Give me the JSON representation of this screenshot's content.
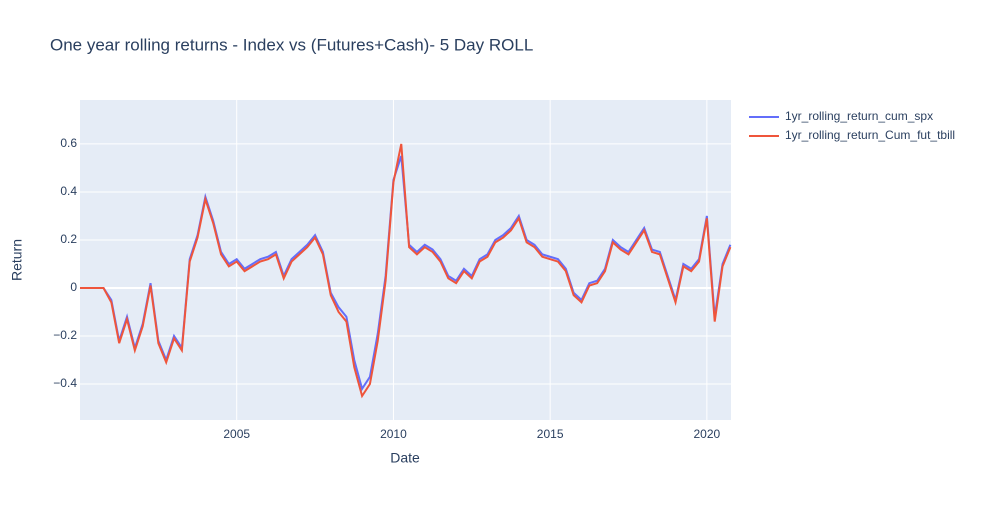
{
  "chart_data": {
    "type": "line",
    "title": "One year rolling returns - Index vs (Futures+Cash)- 5 Day ROLL",
    "x_label": "Date",
    "y_label": "Return",
    "x": [
      2000.0,
      2000.25,
      2000.5,
      2000.75,
      2001.0,
      2001.25,
      2001.5,
      2001.75,
      2002.0,
      2002.25,
      2002.5,
      2002.75,
      2003.0,
      2003.25,
      2003.5,
      2003.75,
      2004.0,
      2004.25,
      2004.5,
      2004.75,
      2005.0,
      2005.25,
      2005.5,
      2005.75,
      2006.0,
      2006.25,
      2006.5,
      2006.75,
      2007.0,
      2007.25,
      2007.5,
      2007.75,
      2008.0,
      2008.25,
      2008.5,
      2008.75,
      2009.0,
      2009.25,
      2009.5,
      2009.75,
      2010.0,
      2010.25,
      2010.5,
      2010.75,
      2011.0,
      2011.25,
      2011.5,
      2011.75,
      2012.0,
      2012.25,
      2012.5,
      2012.75,
      2013.0,
      2013.25,
      2013.5,
      2013.75,
      2014.0,
      2014.25,
      2014.5,
      2014.75,
      2015.0,
      2015.25,
      2015.5,
      2015.75,
      2016.0,
      2016.25,
      2016.5,
      2016.75,
      2017.0,
      2017.25,
      2017.5,
      2017.75,
      2018.0,
      2018.25,
      2018.5,
      2018.75,
      2019.0,
      2019.25,
      2019.5,
      2019.75,
      2020.0,
      2020.25,
      2020.5,
      2020.75
    ],
    "series": [
      {
        "name": "1yr_rolling_return_cum_spx",
        "color": "#636efa",
        "values": [
          0,
          0,
          0,
          0,
          -0.05,
          -0.22,
          -0.12,
          -0.25,
          -0.15,
          0.02,
          -0.22,
          -0.3,
          -0.2,
          -0.25,
          0.12,
          0.22,
          0.38,
          0.28,
          0.15,
          0.1,
          0.12,
          0.08,
          0.1,
          0.12,
          0.13,
          0.15,
          0.05,
          0.12,
          0.15,
          0.18,
          0.22,
          0.15,
          -0.02,
          -0.08,
          -0.12,
          -0.3,
          -0.42,
          -0.37,
          -0.19,
          0.05,
          0.45,
          0.55,
          0.18,
          0.15,
          0.18,
          0.16,
          0.12,
          0.05,
          0.03,
          0.08,
          0.05,
          0.12,
          0.14,
          0.2,
          0.22,
          0.25,
          0.3,
          0.2,
          0.18,
          0.14,
          0.13,
          0.12,
          0.08,
          -0.02,
          -0.05,
          0.02,
          0.03,
          0.08,
          0.2,
          0.17,
          0.15,
          0.2,
          0.25,
          0.16,
          0.15,
          0.05,
          -0.05,
          0.1,
          0.08,
          0.12,
          0.3,
          -0.12,
          0.1,
          0.18
        ]
      },
      {
        "name": "1yr_rolling_return_Cum_fut_tbill",
        "color": "#ef553b",
        "values": [
          0,
          0,
          0,
          0,
          -0.06,
          -0.23,
          -0.13,
          -0.26,
          -0.16,
          0.01,
          -0.23,
          -0.31,
          -0.21,
          -0.26,
          0.11,
          0.21,
          0.37,
          0.27,
          0.14,
          0.09,
          0.11,
          0.07,
          0.09,
          0.11,
          0.12,
          0.14,
          0.04,
          0.11,
          0.14,
          0.17,
          0.21,
          0.14,
          -0.03,
          -0.1,
          -0.14,
          -0.33,
          -0.45,
          -0.4,
          -0.22,
          0.03,
          0.44,
          0.6,
          0.17,
          0.14,
          0.17,
          0.15,
          0.11,
          0.04,
          0.02,
          0.07,
          0.04,
          0.11,
          0.13,
          0.19,
          0.21,
          0.24,
          0.29,
          0.19,
          0.17,
          0.13,
          0.12,
          0.11,
          0.07,
          -0.03,
          -0.06,
          0.01,
          0.02,
          0.07,
          0.19,
          0.16,
          0.14,
          0.19,
          0.24,
          0.15,
          0.14,
          0.04,
          -0.06,
          0.09,
          0.07,
          0.11,
          0.29,
          -0.14,
          0.09,
          0.17
        ]
      }
    ],
    "xlim": [
      2000.0,
      2020.77
    ],
    "xticks": [
      2005,
      2010,
      2015,
      2020
    ],
    "ylim": [
      -0.55,
      0.783
    ],
    "yticks": [
      {
        "value": -0.4,
        "label": "−0.4"
      },
      {
        "value": -0.2,
        "label": "−0.2"
      },
      0,
      0.2,
      0.4,
      0.6
    ],
    "grid": true
  }
}
